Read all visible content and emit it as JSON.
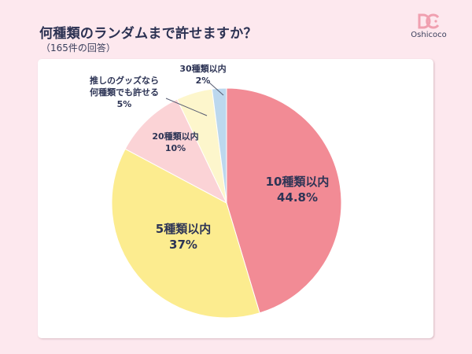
{
  "header": {
    "title": "何種類のランダムまで許せますか？",
    "subtitle": "（165件の回答）"
  },
  "logo": {
    "name": "Oshicoco",
    "icon": "oshicoco-logo-icon",
    "color": "#f0a0b0"
  },
  "chart_data": {
    "type": "pie",
    "title": "何種類のランダムまで許せますか？",
    "subtitle": "（165件の回答）",
    "total_responses": 165,
    "slices": [
      {
        "label": "10種類以内",
        "value": 44.8,
        "display": "44.8%",
        "color": "#f28b95"
      },
      {
        "label": "5種類以内",
        "value": 37,
        "display": "37%",
        "color": "#fcec8f"
      },
      {
        "label": "20種類以内",
        "value": 10,
        "display": "10%",
        "color": "#fbd3d6"
      },
      {
        "label": "推しのグッズなら何種類でも許せる",
        "value": 5,
        "display": "5%",
        "color": "#fdf6cc"
      },
      {
        "label": "30種類以内",
        "value": 2,
        "display": "2%",
        "color": "#bcd8ee"
      }
    ],
    "start_angle": "12 o'clock",
    "direction": "clockwise",
    "legend": "none (labels on/near slices)"
  },
  "labels": {
    "s10": {
      "name": "10種類以内",
      "pct": "44.8%"
    },
    "s5": {
      "name": "5種類以内",
      "pct": "37%"
    },
    "s20": {
      "name": "20種類以内",
      "pct": "10%"
    },
    "sany": {
      "line1": "推しのグッズなら",
      "line2": "何種類でも許せる",
      "pct": "5%"
    },
    "s30": {
      "name": "30種類以内",
      "pct": "2%"
    }
  }
}
